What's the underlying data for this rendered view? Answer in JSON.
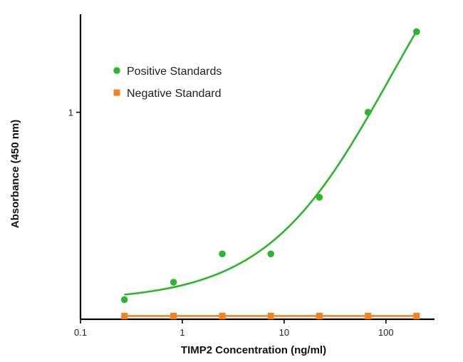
{
  "chart_data": {
    "type": "scatter",
    "title": "",
    "xlabel": "TIMP2 Concentration (ng/ml)",
    "ylabel": "Absorbance (450 nm)",
    "x_scale": "log",
    "y_scale": "linear",
    "xlim": [
      0.1,
      300
    ],
    "ylim": [
      0.05,
      1.45
    ],
    "x_ticks": [
      {
        "value": 0.1,
        "label": "0.1"
      },
      {
        "value": 1,
        "label": "1"
      },
      {
        "value": 10,
        "label": "10"
      },
      {
        "value": 100,
        "label": "100"
      }
    ],
    "y_ticks": [
      {
        "value": 1.0,
        "label": "1"
      }
    ],
    "grid": false,
    "legend": "top-left",
    "series": [
      {
        "name": "Positive Standards",
        "color": "#2db52d",
        "marker": "circle",
        "x": [
          0.27,
          0.82,
          2.47,
          7.4,
          22.2,
          66.7,
          200
        ],
        "y": [
          0.14,
          0.22,
          0.35,
          0.35,
          0.61,
          1.0,
          1.37
        ],
        "fit_curve": true
      },
      {
        "name": "Negative Standard",
        "color": "#f5821f",
        "marker": "square",
        "x": [
          0.27,
          0.82,
          2.47,
          7.4,
          22.2,
          66.7,
          200
        ],
        "y": [
          0.065,
          0.065,
          0.065,
          0.065,
          0.065,
          0.065,
          0.065
        ],
        "fit_curve": true
      }
    ]
  }
}
